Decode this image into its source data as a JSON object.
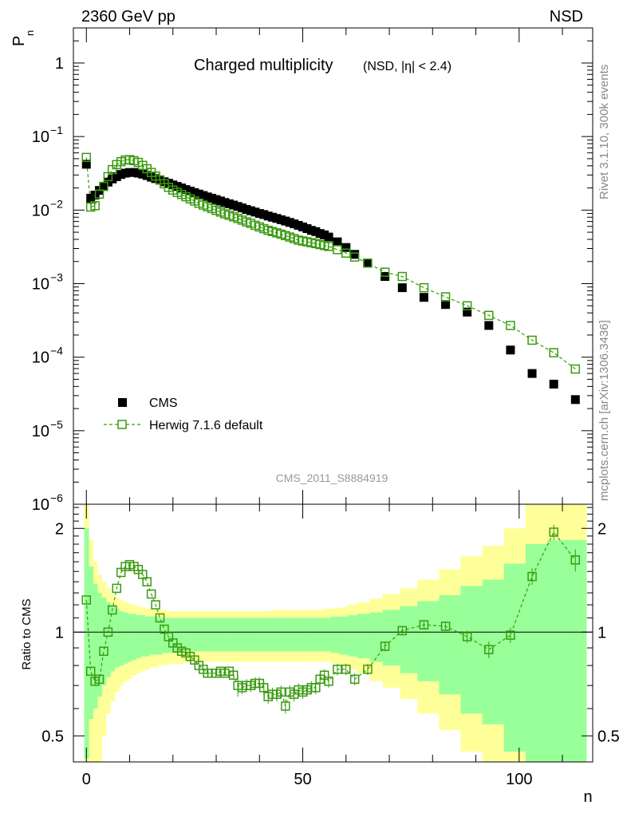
{
  "header": {
    "energy_label": "2360 GeV pp",
    "process_label": "NSD"
  },
  "side_labels": {
    "rivet": "Rivet 3.1.10,  300k events",
    "mcplots": "mcplots.cern.ch [arXiv:1306.3436]"
  },
  "colors": {
    "data": "#000000",
    "mc": "#3a9a10",
    "band_inner": "#99ff99",
    "band_outer": "#ffff99"
  },
  "chart_data": [
    {
      "type": "scatter",
      "title": "Charged multiplicity",
      "subtitle": "(NSD, |η| < 2.4)",
      "ylabel_main": "P",
      "ylabel_sub": "n",
      "xlabel": "n",
      "yscale": "log",
      "xlim": [
        -3,
        117
      ],
      "ylim": [
        1e-06,
        3
      ],
      "y_ticks": [
        {
          "value": 1,
          "base": "1",
          "exp": ""
        },
        {
          "value": 0.1,
          "base": "10",
          "exp": "−1"
        },
        {
          "value": 0.01,
          "base": "10",
          "exp": "−2"
        },
        {
          "value": 0.001,
          "base": "10",
          "exp": "−3"
        },
        {
          "value": 0.0001,
          "base": "10",
          "exp": "−4"
        },
        {
          "value": 1e-05,
          "base": "10",
          "exp": "−5"
        },
        {
          "value": 1e-06,
          "base": "10",
          "exp": "−6"
        }
      ],
      "legend": {
        "position": "lower-left",
        "data_label": "CMS",
        "mc_label": "Herwig 7.1.6 default"
      },
      "analysis_id": "CMS_2011_S8884919",
      "series": [
        {
          "name": "CMS",
          "style": "filled-square",
          "x": [
            0,
            1,
            2,
            3,
            4,
            5,
            6,
            7,
            8,
            9,
            10,
            11,
            12,
            13,
            14,
            15,
            16,
            17,
            18,
            19,
            20,
            21,
            22,
            23,
            24,
            25,
            26,
            27,
            28,
            29,
            30,
            31,
            32,
            33,
            34,
            35,
            36,
            37,
            38,
            39,
            40,
            41,
            42,
            43,
            44,
            45,
            46,
            47,
            48,
            49,
            50,
            51,
            52,
            53,
            54,
            55,
            56,
            58,
            60,
            62,
            65,
            69,
            73,
            78,
            83,
            88,
            93,
            98,
            103,
            108,
            113
          ],
          "y": [
            0.042,
            0.0145,
            0.016,
            0.0185,
            0.021,
            0.024,
            0.0265,
            0.0285,
            0.0305,
            0.0318,
            0.0325,
            0.0325,
            0.0318,
            0.0308,
            0.0295,
            0.028,
            0.0268,
            0.0255,
            0.0243,
            0.0232,
            0.022,
            0.021,
            0.02,
            0.019,
            0.0181,
            0.0173,
            0.0165,
            0.0158,
            0.0151,
            0.0145,
            0.0139,
            0.0133,
            0.0127,
            0.0122,
            0.0117,
            0.0112,
            0.0107,
            0.0102,
            0.0098,
            0.0094,
            0.009,
            0.0087,
            0.0083,
            0.008,
            0.0077,
            0.0074,
            0.0071,
            0.0068,
            0.0065,
            0.0062,
            0.0059,
            0.0056,
            0.0053,
            0.0051,
            0.0048,
            0.0046,
            0.0043,
            0.0037,
            0.0031,
            0.0025,
            0.0019,
            0.00125,
            0.00088,
            0.00065,
            0.00052,
            0.00041,
            0.00027,
            0.000125,
            6e-05,
            4.3e-05,
            2.65e-05
          ]
        },
        {
          "name": "Herwig 7.1.6 default",
          "style": "open-square-dashed",
          "x": [
            0,
            1,
            2,
            3,
            4,
            5,
            6,
            7,
            8,
            9,
            10,
            11,
            12,
            13,
            14,
            15,
            16,
            17,
            18,
            19,
            20,
            21,
            22,
            23,
            24,
            25,
            26,
            27,
            28,
            29,
            30,
            31,
            32,
            33,
            34,
            35,
            36,
            37,
            38,
            39,
            40,
            41,
            42,
            43,
            44,
            45,
            46,
            47,
            48,
            49,
            50,
            51,
            52,
            53,
            54,
            55,
            56,
            58,
            60,
            62,
            65,
            69,
            73,
            78,
            83,
            88,
            93,
            98,
            103,
            108,
            113
          ],
          "y": [
            0.052,
            0.011,
            0.0115,
            0.0165,
            0.021,
            0.0285,
            0.0355,
            0.0415,
            0.0455,
            0.048,
            0.0485,
            0.047,
            0.0445,
            0.0405,
            0.0365,
            0.0325,
            0.029,
            0.0258,
            0.0228,
            0.0204,
            0.0187,
            0.0174,
            0.0163,
            0.0152,
            0.0142,
            0.0133,
            0.0124,
            0.0117,
            0.0111,
            0.0105,
            0.0099,
            0.0094,
            0.0089,
            0.0085,
            0.0081,
            0.0077,
            0.0073,
            0.0069,
            0.0066,
            0.0062,
            0.0059,
            0.0056,
            0.0053,
            0.0051,
            0.0049,
            0.0047,
            0.0045,
            0.0043,
            0.0041,
            0.0039,
            0.0038,
            0.0037,
            0.0036,
            0.0035,
            0.0034,
            0.0033,
            0.0032,
            0.0029,
            0.0026,
            0.0023,
            0.0019,
            0.00143,
            0.00125,
            0.00088,
            0.00066,
            0.0005,
            0.00037,
            0.00027,
            0.00017,
            0.000115,
            6.9e-05
          ]
        }
      ]
    },
    {
      "type": "line",
      "ylabel": "Ratio to CMS",
      "xlabel": "n",
      "yscale": "log",
      "xlim": [
        -3,
        117
      ],
      "ylim": [
        0.42,
        2.35
      ],
      "y_ticks": [
        {
          "value": 0.5,
          "label": "0.5"
        },
        {
          "value": 1,
          "label": "1"
        },
        {
          "value": 2,
          "label": "2"
        }
      ],
      "x_ticks": [
        {
          "value": 0,
          "label": "0"
        },
        {
          "value": 50,
          "label": "50"
        },
        {
          "value": 100,
          "label": "100"
        }
      ],
      "series": [
        {
          "name": "Herwig 7.1.6 / CMS",
          "x": [
            0,
            1,
            2,
            3,
            4,
            5,
            6,
            7,
            8,
            9,
            10,
            11,
            12,
            13,
            14,
            15,
            16,
            17,
            18,
            19,
            20,
            21,
            22,
            23,
            24,
            25,
            26,
            27,
            28,
            29,
            30,
            31,
            32,
            33,
            34,
            35,
            36,
            37,
            38,
            39,
            40,
            41,
            42,
            43,
            44,
            45,
            46,
            47,
            48,
            49,
            50,
            51,
            52,
            53,
            54,
            55,
            56,
            58,
            60,
            62,
            65,
            69,
            73,
            78,
            83,
            88,
            93,
            98,
            103,
            108,
            113
          ],
          "y": [
            1.24,
            0.77,
            0.72,
            0.73,
            0.88,
            1.0,
            1.16,
            1.34,
            1.49,
            1.55,
            1.57,
            1.55,
            1.52,
            1.47,
            1.4,
            1.29,
            1.2,
            1.1,
            1.02,
            0.97,
            0.93,
            0.9,
            0.88,
            0.87,
            0.85,
            0.83,
            0.8,
            0.78,
            0.76,
            0.76,
            0.76,
            0.77,
            0.76,
            0.77,
            0.75,
            0.7,
            0.69,
            0.7,
            0.7,
            0.71,
            0.71,
            0.69,
            0.65,
            0.66,
            0.66,
            0.67,
            0.61,
            0.67,
            0.66,
            0.68,
            0.67,
            0.68,
            0.69,
            0.69,
            0.73,
            0.75,
            0.72,
            0.78,
            0.78,
            0.73,
            0.78,
            0.91,
            1.01,
            1.05,
            1.04,
            0.97,
            0.89,
            0.98,
            1.45,
            1.95,
            1.62
          ],
          "yerr": [
            0.02,
            0.02,
            0.02,
            0.02,
            0.02,
            0.02,
            0.02,
            0.02,
            0.02,
            0.02,
            0.02,
            0.02,
            0.02,
            0.02,
            0.02,
            0.02,
            0.02,
            0.02,
            0.02,
            0.02,
            0.02,
            0.02,
            0.02,
            0.02,
            0.02,
            0.02,
            0.02,
            0.02,
            0.02,
            0.02,
            0.02,
            0.02,
            0.02,
            0.02,
            0.02,
            0.05,
            0.03,
            0.03,
            0.03,
            0.03,
            0.03,
            0.03,
            0.03,
            0.03,
            0.03,
            0.03,
            0.03,
            0.03,
            0.03,
            0.03,
            0.03,
            0.03,
            0.03,
            0.03,
            0.03,
            0.03,
            0.03,
            0.03,
            0.03,
            0.03,
            0.03,
            0.03,
            0.03,
            0.03,
            0.03,
            0.04,
            0.05,
            0.05,
            0.08,
            0.1,
            0.12
          ]
        }
      ],
      "band_edges": [
        -0.5,
        0.5,
        1.5,
        2.5,
        3.5,
        4.5,
        5.5,
        6.5,
        7.5,
        8.5,
        9.5,
        10.5,
        11.5,
        12.5,
        13.5,
        14.5,
        15.5,
        16.5,
        17.5,
        18.5,
        19.5,
        20.5,
        21.5,
        22.5,
        23.5,
        24.5,
        25.5,
        26.5,
        27.5,
        28.5,
        29.5,
        30.5,
        31.5,
        32.5,
        33.5,
        34.5,
        35.5,
        36.5,
        37.5,
        38.5,
        39.5,
        40.5,
        41.5,
        42.5,
        43.5,
        44.5,
        45.5,
        46.5,
        47.5,
        48.5,
        49.5,
        50.5,
        51.5,
        52.5,
        53.5,
        54.5,
        55.5,
        56.5,
        58.5,
        60.5,
        62.5,
        65.5,
        68.5,
        72.5,
        76.5,
        81.5,
        86.5,
        91.5,
        96.5,
        101.5,
        106.5,
        111.5,
        115.5
      ],
      "band_inner_lo": [
        0.43,
        0.56,
        0.6,
        0.65,
        0.7,
        0.74,
        0.77,
        0.79,
        0.8,
        0.81,
        0.82,
        0.83,
        0.84,
        0.85,
        0.85,
        0.86,
        0.86,
        0.86,
        0.87,
        0.87,
        0.87,
        0.87,
        0.87,
        0.87,
        0.88,
        0.88,
        0.88,
        0.88,
        0.88,
        0.88,
        0.88,
        0.88,
        0.88,
        0.88,
        0.88,
        0.88,
        0.88,
        0.88,
        0.88,
        0.88,
        0.88,
        0.88,
        0.88,
        0.88,
        0.88,
        0.88,
        0.88,
        0.88,
        0.88,
        0.88,
        0.88,
        0.88,
        0.88,
        0.88,
        0.88,
        0.88,
        0.88,
        0.87,
        0.86,
        0.85,
        0.84,
        0.82,
        0.8,
        0.76,
        0.72,
        0.66,
        0.58,
        0.54,
        0.45,
        0.42,
        0.42,
        0.42
      ],
      "band_inner_hi": [
        2.0,
        1.55,
        1.38,
        1.3,
        1.26,
        1.22,
        1.19,
        1.17,
        1.15,
        1.14,
        1.13,
        1.13,
        1.12,
        1.12,
        1.11,
        1.11,
        1.11,
        1.1,
        1.1,
        1.1,
        1.1,
        1.1,
        1.1,
        1.1,
        1.1,
        1.1,
        1.1,
        1.1,
        1.1,
        1.1,
        1.1,
        1.1,
        1.1,
        1.1,
        1.1,
        1.1,
        1.1,
        1.1,
        1.1,
        1.1,
        1.1,
        1.1,
        1.1,
        1.1,
        1.1,
        1.1,
        1.1,
        1.1,
        1.1,
        1.1,
        1.1,
        1.1,
        1.1,
        1.1,
        1.1,
        1.1,
        1.1,
        1.11,
        1.11,
        1.12,
        1.13,
        1.14,
        1.16,
        1.19,
        1.23,
        1.28,
        1.36,
        1.42,
        1.58,
        1.8,
        1.85,
        1.85
      ],
      "band_outer_lo": [
        0.42,
        0.42,
        0.42,
        0.42,
        0.5,
        0.58,
        0.63,
        0.67,
        0.7,
        0.72,
        0.73,
        0.75,
        0.76,
        0.77,
        0.78,
        0.79,
        0.79,
        0.8,
        0.8,
        0.81,
        0.81,
        0.81,
        0.81,
        0.82,
        0.82,
        0.82,
        0.82,
        0.82,
        0.82,
        0.82,
        0.82,
        0.82,
        0.82,
        0.82,
        0.82,
        0.82,
        0.82,
        0.82,
        0.82,
        0.82,
        0.82,
        0.82,
        0.82,
        0.82,
        0.82,
        0.82,
        0.82,
        0.82,
        0.82,
        0.82,
        0.82,
        0.82,
        0.82,
        0.82,
        0.82,
        0.82,
        0.82,
        0.81,
        0.8,
        0.78,
        0.76,
        0.72,
        0.69,
        0.64,
        0.58,
        0.52,
        0.45,
        0.42,
        0.42,
        0.42,
        0.42,
        0.42
      ],
      "band_outer_hi": [
        2.35,
        1.85,
        1.6,
        1.47,
        1.4,
        1.34,
        1.29,
        1.26,
        1.24,
        1.22,
        1.21,
        1.2,
        1.19,
        1.18,
        1.17,
        1.17,
        1.16,
        1.16,
        1.16,
        1.15,
        1.15,
        1.15,
        1.15,
        1.15,
        1.15,
        1.15,
        1.15,
        1.15,
        1.15,
        1.15,
        1.15,
        1.15,
        1.15,
        1.15,
        1.15,
        1.15,
        1.15,
        1.15,
        1.15,
        1.15,
        1.15,
        1.15,
        1.15,
        1.16,
        1.16,
        1.16,
        1.16,
        1.16,
        1.16,
        1.16,
        1.16,
        1.16,
        1.16,
        1.16,
        1.16,
        1.17,
        1.17,
        1.17,
        1.18,
        1.2,
        1.22,
        1.25,
        1.29,
        1.34,
        1.42,
        1.52,
        1.66,
        1.78,
        2.0,
        2.35,
        2.35,
        2.35
      ]
    }
  ]
}
